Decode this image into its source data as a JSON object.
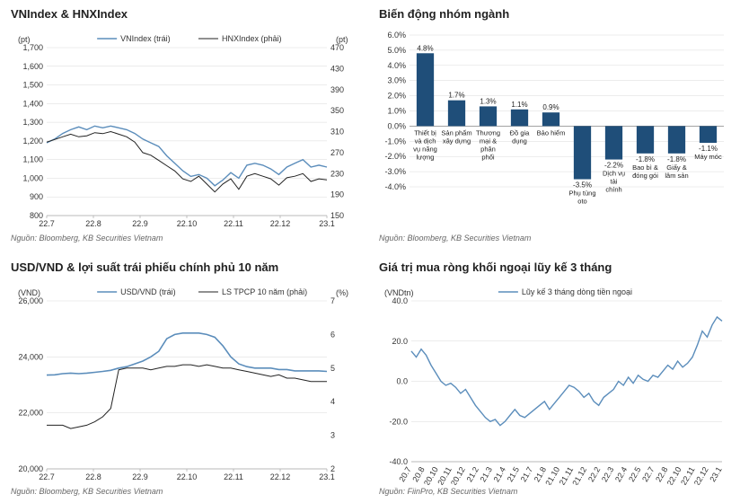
{
  "panels": {
    "tl": {
      "title": "VNIndex & HNXIndex",
      "source": "Nguồn: Bloomberg, KB Securities Vietnam",
      "type": "line",
      "left_unit": "(pt)",
      "right_unit": "(pt)",
      "left_ylim": [
        800,
        1700
      ],
      "left_step": 100,
      "right_ylim": [
        150,
        470
      ],
      "right_step": 40,
      "x_labels": [
        "22.7",
        "22.8",
        "22.9",
        "22.10",
        "22.11",
        "22.12",
        "23.1"
      ],
      "series": [
        {
          "name": "VNIndex (trái)",
          "color": "#5b8dbb",
          "width": 1.4,
          "y": [
            1190,
            1210,
            1240,
            1260,
            1275,
            1260,
            1280,
            1270,
            1280,
            1270,
            1260,
            1240,
            1210,
            1190,
            1170,
            1120,
            1080,
            1040,
            1010,
            1020,
            1000,
            960,
            990,
            1030,
            1000,
            1070,
            1080,
            1070,
            1050,
            1020,
            1060,
            1080,
            1100,
            1060,
            1070,
            1060
          ],
          "axis": "left"
        },
        {
          "name": "HNXIndex (phải)",
          "color": "#222222",
          "width": 1.0,
          "y": [
            290,
            295,
            300,
            305,
            300,
            302,
            308,
            306,
            310,
            305,
            300,
            290,
            270,
            265,
            255,
            245,
            235,
            220,
            215,
            225,
            210,
            195,
            210,
            220,
            200,
            225,
            230,
            225,
            220,
            208,
            222,
            225,
            230,
            215,
            220,
            218
          ],
          "axis": "right"
        }
      ],
      "background": "#ffffff",
      "grid_color": "#e0e0e0"
    },
    "tr": {
      "title": "Biến động nhóm ngành",
      "source": "Nguồn: Bloomberg, KB Securities Vietnam",
      "type": "bar",
      "ylim": [
        -4,
        6
      ],
      "ystep": 1,
      "bar_color": "#1f4e79",
      "categories": [
        "Thiết bị và dịch vụ năng lượng",
        "Sản phẩm xây dựng",
        "Thương mại & phân phối",
        "Đồ gia dụng",
        "Bảo hiểm",
        "Phụ tùng oto",
        "Dịch vụ tài chính",
        "Bao bì & đóng gói",
        "Giấy & lâm sản",
        "Máy móc"
      ],
      "values": [
        4.8,
        1.7,
        1.3,
        1.1,
        0.9,
        -3.5,
        -2.2,
        -1.8,
        -1.8,
        -1.1
      ],
      "labels": [
        "4.8%",
        "1.7%",
        "1.3%",
        "1.1%",
        "0.9%",
        "-3.5%",
        "-2.2%",
        "-1.8%",
        "-1.8%",
        "-1.1%"
      ],
      "background": "#ffffff",
      "grid_color": "#e0e0e0"
    },
    "bl": {
      "title": "USD/VND & lợi suất trái phiếu chính phủ 10 năm",
      "source": "Nguồn: Bloomberg, KB Securities Vietnam",
      "type": "line",
      "left_unit": "(VND)",
      "right_unit": "(%)",
      "left_ylim": [
        20000,
        26000
      ],
      "left_step": 2000,
      "right_ylim": [
        2.0,
        7.0
      ],
      "right_step": 1.0,
      "x_labels": [
        "22.7",
        "22.8",
        "22.9",
        "22.10",
        "22.11",
        "22.12",
        "23.1"
      ],
      "series": [
        {
          "name": "USD/VND (trái)",
          "color": "#5b8dbb",
          "width": 1.6,
          "y": [
            23350,
            23360,
            23400,
            23420,
            23400,
            23420,
            23450,
            23480,
            23520,
            23600,
            23650,
            23750,
            23850,
            24000,
            24200,
            24650,
            24800,
            24850,
            24850,
            24850,
            24800,
            24700,
            24400,
            24000,
            23750,
            23650,
            23600,
            23600,
            23600,
            23550,
            23550,
            23500,
            23500,
            23500,
            23500,
            23480
          ],
          "axis": "left"
        },
        {
          "name": "LS TPCP 10 năm (phải)",
          "color": "#222222",
          "width": 1.0,
          "y": [
            3.3,
            3.3,
            3.3,
            3.2,
            3.25,
            3.3,
            3.4,
            3.55,
            3.8,
            4.95,
            5.0,
            5.0,
            5.0,
            4.95,
            5.0,
            5.05,
            5.05,
            5.1,
            5.1,
            5.05,
            5.1,
            5.05,
            5.0,
            5.0,
            4.95,
            4.9,
            4.85,
            4.8,
            4.75,
            4.8,
            4.7,
            4.7,
            4.65,
            4.6,
            4.6,
            4.6
          ],
          "axis": "right"
        }
      ],
      "background": "#ffffff",
      "grid_color": "#e0e0e0"
    },
    "br": {
      "title": "Giá trị mua ròng khối ngoại lũy kế 3 tháng",
      "source": "Nguồn: FiinPro, KB Securities Vietnam",
      "type": "line",
      "left_unit": "(VNDtn)",
      "left_ylim": [
        -40,
        40
      ],
      "left_step": 20,
      "x_labels": [
        "20.7",
        "20.8",
        "20.10",
        "20.11",
        "20.12",
        "21.2",
        "21.3",
        "21.4",
        "21.5",
        "21.7",
        "21.8",
        "21.10",
        "21.11",
        "21.12",
        "22.2",
        "22.3",
        "22.4",
        "22.5",
        "22.7",
        "22.8",
        "22.10",
        "22.11",
        "22.12",
        "23.1"
      ],
      "series": [
        {
          "name": "Lũy kế 3 tháng dòng tiền ngoại",
          "color": "#5b8dbb",
          "width": 1.4,
          "y": [
            15,
            12,
            16,
            13,
            8,
            4,
            0,
            -2,
            -1,
            -3,
            -6,
            -4,
            -8,
            -12,
            -15,
            -18,
            -20,
            -19,
            -22,
            -20,
            -17,
            -14,
            -17,
            -18,
            -16,
            -14,
            -12,
            -10,
            -14,
            -11,
            -8,
            -5,
            -2,
            -3,
            -5,
            -8,
            -6,
            -10,
            -12,
            -8,
            -6,
            -4,
            0,
            -2,
            2,
            -1,
            3,
            1,
            0,
            3,
            2,
            5,
            8,
            6,
            10,
            7,
            9,
            12,
            18,
            25,
            22,
            28,
            32,
            30
          ],
          "axis": "left"
        }
      ],
      "background": "#ffffff",
      "grid_color": "#e0e0e0"
    }
  }
}
